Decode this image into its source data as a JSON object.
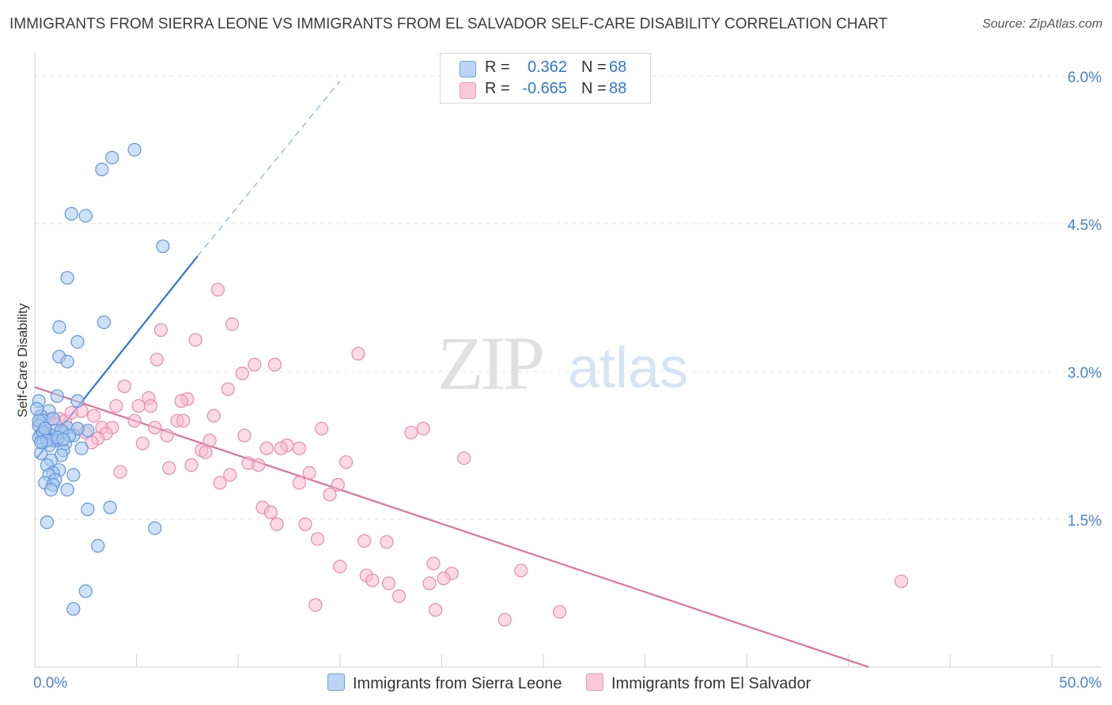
{
  "title": "IMMIGRANTS FROM SIERRA LEONE VS IMMIGRANTS FROM EL SALVADOR SELF-CARE DISABILITY CORRELATION CHART",
  "source": "Source: ZipAtlas.com",
  "watermark": {
    "zip": "ZIP",
    "atlas": "atlas"
  },
  "legend": {
    "rows": [
      {
        "r_label": "R =",
        "r_value": "0.362",
        "n_label": "N =",
        "n_value": "68"
      },
      {
        "r_label": "R =",
        "r_value": "-0.665",
        "n_label": "N =",
        "n_value": "88"
      }
    ]
  },
  "colors": {
    "sierra_fill": "#a8c8f0",
    "sierra_stroke": "#5f95dd",
    "sierra_line": "#2f76d4",
    "salvador_fill": "#f7bcd0",
    "salvador_stroke": "#e88aac",
    "salvador_line": "#e0709a",
    "tick_label": "#4a82d0",
    "grid": "#e3e3e3"
  },
  "chart_data": {
    "type": "scatter",
    "ylabel": "Self-Care Disability",
    "xlim": [
      0,
      50
    ],
    "ylim": [
      0,
      6.0
    ],
    "x_ticks": [
      "0.0%",
      "50.0%"
    ],
    "y_ticks": [
      {
        "value": 1.5,
        "label": "1.5%"
      },
      {
        "value": 3.0,
        "label": "3.0%"
      },
      {
        "value": 4.5,
        "label": "4.5%"
      },
      {
        "value": 6.0,
        "label": "6.0%"
      }
    ],
    "grid": true,
    "legend_position": "top-center",
    "series": [
      {
        "name": "Immigrants from Sierra Leone",
        "trend": {
          "x0": 0.1,
          "y0": 2.12,
          "x1": 8.0,
          "y1": 4.17,
          "dash_to_x": 15.0,
          "dash_to_y": 5.95
        },
        "points": [
          [
            4.9,
            5.25
          ],
          [
            3.8,
            5.17
          ],
          [
            3.3,
            5.05
          ],
          [
            1.8,
            4.6
          ],
          [
            2.5,
            4.58
          ],
          [
            6.3,
            4.27
          ],
          [
            1.6,
            3.95
          ],
          [
            1.2,
            3.45
          ],
          [
            3.4,
            3.5
          ],
          [
            2.1,
            3.3
          ],
          [
            1.2,
            3.15
          ],
          [
            1.6,
            3.1
          ],
          [
            1.1,
            2.75
          ],
          [
            2.1,
            2.7
          ],
          [
            0.2,
            2.7
          ],
          [
            0.7,
            2.6
          ],
          [
            0.3,
            2.55
          ],
          [
            0.4,
            2.5
          ],
          [
            0.2,
            2.45
          ],
          [
            1.6,
            2.43
          ],
          [
            2.6,
            2.4
          ],
          [
            1.0,
            2.4
          ],
          [
            1.4,
            2.38
          ],
          [
            0.5,
            2.38
          ],
          [
            0.3,
            2.36
          ],
          [
            0.8,
            2.35
          ],
          [
            1.9,
            2.35
          ],
          [
            0.2,
            2.33
          ],
          [
            0.6,
            2.32
          ],
          [
            0.9,
            2.3
          ],
          [
            1.1,
            2.3
          ],
          [
            0.4,
            2.28
          ],
          [
            1.5,
            2.27
          ],
          [
            0.7,
            2.25
          ],
          [
            2.3,
            2.22
          ],
          [
            1.4,
            2.2
          ],
          [
            0.3,
            2.17
          ],
          [
            1.3,
            2.15
          ],
          [
            0.8,
            2.1
          ],
          [
            0.6,
            2.05
          ],
          [
            1.2,
            2.0
          ],
          [
            0.9,
            1.97
          ],
          [
            0.7,
            1.95
          ],
          [
            1.9,
            1.95
          ],
          [
            1.0,
            1.9
          ],
          [
            0.5,
            1.87
          ],
          [
            0.9,
            1.85
          ],
          [
            0.8,
            1.8
          ],
          [
            1.6,
            1.8
          ],
          [
            2.6,
            1.6
          ],
          [
            3.7,
            1.62
          ],
          [
            0.6,
            1.47
          ],
          [
            5.9,
            1.41
          ],
          [
            3.1,
            1.23
          ],
          [
            2.5,
            0.77
          ],
          [
            1.9,
            0.59
          ],
          [
            0.1,
            2.62
          ],
          [
            1.3,
            2.4
          ],
          [
            0.4,
            2.38
          ],
          [
            0.6,
            2.3
          ],
          [
            2.1,
            2.42
          ],
          [
            0.2,
            2.5
          ],
          [
            0.9,
            2.52
          ],
          [
            1.7,
            2.35
          ],
          [
            0.3,
            2.28
          ],
          [
            1.1,
            2.33
          ],
          [
            0.5,
            2.42
          ],
          [
            1.4,
            2.31
          ]
        ]
      },
      {
        "name": "Immigrants from El Salvador",
        "trend": {
          "x0": 0.0,
          "y0": 2.84,
          "x1": 41.0,
          "y1": 0.0
        },
        "points": [
          [
            9.0,
            3.83
          ],
          [
            9.7,
            3.48
          ],
          [
            6.2,
            3.42
          ],
          [
            7.9,
            3.32
          ],
          [
            15.9,
            3.18
          ],
          [
            6.0,
            3.12
          ],
          [
            10.8,
            3.07
          ],
          [
            11.8,
            3.07
          ],
          [
            10.2,
            2.98
          ],
          [
            4.4,
            2.85
          ],
          [
            9.5,
            2.82
          ],
          [
            5.6,
            2.73
          ],
          [
            7.5,
            2.72
          ],
          [
            7.2,
            2.7
          ],
          [
            4.0,
            2.65
          ],
          [
            5.1,
            2.65
          ],
          [
            5.7,
            2.65
          ],
          [
            2.3,
            2.6
          ],
          [
            2.9,
            2.55
          ],
          [
            8.8,
            2.55
          ],
          [
            0.3,
            2.55
          ],
          [
            0.7,
            2.52
          ],
          [
            1.2,
            2.52
          ],
          [
            1.5,
            2.5
          ],
          [
            4.9,
            2.5
          ],
          [
            7.0,
            2.5
          ],
          [
            7.3,
            2.5
          ],
          [
            1.0,
            2.47
          ],
          [
            3.3,
            2.43
          ],
          [
            3.8,
            2.43
          ],
          [
            5.9,
            2.43
          ],
          [
            14.1,
            2.42
          ],
          [
            19.1,
            2.42
          ],
          [
            18.5,
            2.38
          ],
          [
            2.5,
            2.38
          ],
          [
            3.5,
            2.37
          ],
          [
            6.5,
            2.35
          ],
          [
            10.3,
            2.35
          ],
          [
            3.1,
            2.32
          ],
          [
            8.6,
            2.3
          ],
          [
            2.8,
            2.28
          ],
          [
            5.3,
            2.27
          ],
          [
            12.4,
            2.25
          ],
          [
            11.4,
            2.22
          ],
          [
            12.1,
            2.22
          ],
          [
            13.0,
            2.22
          ],
          [
            8.2,
            2.2
          ],
          [
            8.4,
            2.18
          ],
          [
            21.1,
            2.12
          ],
          [
            15.3,
            2.08
          ],
          [
            10.5,
            2.07
          ],
          [
            11.0,
            2.05
          ],
          [
            7.7,
            2.05
          ],
          [
            6.6,
            2.02
          ],
          [
            4.2,
            1.98
          ],
          [
            9.6,
            1.95
          ],
          [
            13.5,
            1.97
          ],
          [
            9.1,
            1.87
          ],
          [
            13.0,
            1.87
          ],
          [
            14.9,
            1.85
          ],
          [
            14.5,
            1.75
          ],
          [
            11.2,
            1.62
          ],
          [
            11.6,
            1.57
          ],
          [
            11.9,
            1.45
          ],
          [
            13.3,
            1.45
          ],
          [
            13.9,
            1.3
          ],
          [
            16.2,
            1.28
          ],
          [
            17.3,
            1.27
          ],
          [
            15.0,
            1.02
          ],
          [
            19.6,
            1.05
          ],
          [
            16.3,
            0.93
          ],
          [
            20.5,
            0.95
          ],
          [
            16.6,
            0.88
          ],
          [
            17.4,
            0.85
          ],
          [
            19.4,
            0.85
          ],
          [
            23.9,
            0.98
          ],
          [
            20.1,
            0.9
          ],
          [
            17.9,
            0.72
          ],
          [
            13.8,
            0.63
          ],
          [
            19.7,
            0.58
          ],
          [
            25.8,
            0.56
          ],
          [
            23.1,
            0.48
          ],
          [
            42.6,
            0.87
          ],
          [
            0.2,
            2.45
          ],
          [
            0.5,
            2.35
          ],
          [
            1.8,
            2.58
          ],
          [
            2.1,
            2.42
          ],
          [
            0.9,
            2.3
          ]
        ]
      }
    ]
  }
}
